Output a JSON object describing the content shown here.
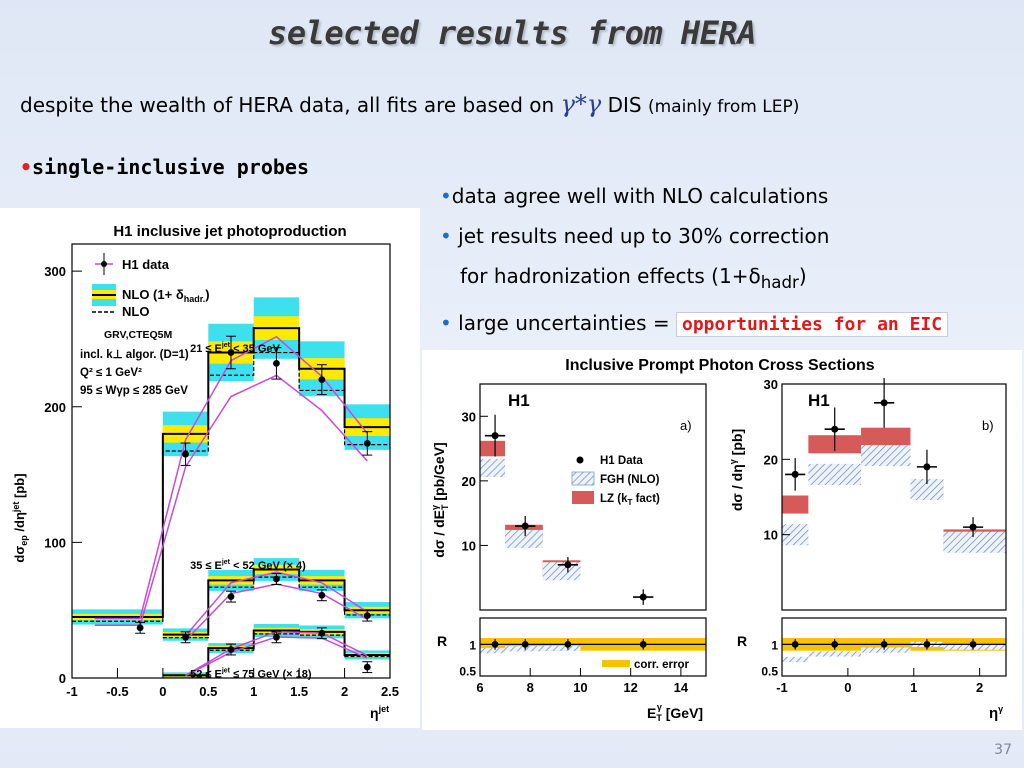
{
  "slide": {
    "title": "selected results from HERA",
    "subtitle_pre": "despite the wealth of HERA data, all fits are based on",
    "gamma_symbol": "γ*γ",
    "subtitle_dis": "DIS",
    "subtitle_paren": "(mainly from LEP)",
    "bullet": "•",
    "probes": "single-inclusive probes",
    "notes": {
      "n1": "data agree well with NLO calculations",
      "n2a": "jet results need up to 30% correction",
      "n2b_pre": "for hadronization effects (1+δ",
      "n2b_sub": "hadr",
      "n2b_post": ")",
      "n3": "large uncertainties =",
      "eic": "opportunities for an EIC"
    },
    "page_number": "37"
  },
  "chart_data": [
    {
      "type": "step",
      "title": "H1 inclusive jet photoproduction",
      "xlabel": "η^jet",
      "ylabel": "dσ_ep/dη^jet [pb]",
      "xlim": [
        -1,
        2.5
      ],
      "ylim": [
        0,
        320
      ],
      "xticks": [
        "-1",
        "-0.5",
        "0",
        "0.5",
        "1",
        "1.5",
        "2",
        "2.5"
      ],
      "yticks": [
        "0",
        "100",
        "200",
        "300"
      ],
      "legend": {
        "h1": "H1 data",
        "nlo_band": "NLO (1+ δ",
        "nlo_band_sub": "hadr.",
        "nlo": "NLO",
        "pdf": "GRV,CTEQ5M",
        "algo": "incl. k⊥ algor. (D=1)",
        "q2": "Q² ≤ 1 GeV²",
        "wgp": "95 ≤ Wγp ≤ 285 GeV"
      },
      "colors": {
        "nlo_band": "#3fe0ee",
        "scale_band": "#ffea00",
        "nlo_line": "#000000",
        "hadr_lines": "#c84ad8"
      },
      "series": [
        {
          "name": "21 ≤ E_T^jet < 35 GeV",
          "label_text": "21 ≤ E",
          "label_sup": "jet",
          "label_post": "< 35 GeV",
          "bins": [
            -1,
            -0.5,
            0,
            0.5,
            1,
            1.5,
            2,
            2.5
          ],
          "nlo": [
            45,
            45,
            180,
            240,
            258,
            228,
            185
          ],
          "data_x": [
            -0.25,
            0.25,
            0.75,
            1.25,
            1.75,
            2.25
          ],
          "data_y": [
            37,
            165,
            240,
            232,
            220,
            173
          ]
        },
        {
          "name": "35 ≤ E_T^jet < 52 GeV (×4)",
          "label_text": "35 ≤ E",
          "label_sup": "jet",
          "label_post": "< 52 GeV (× 4)",
          "bins": [
            0,
            0.5,
            1,
            1.5,
            2,
            2.5
          ],
          "nlo": [
            32,
            72,
            80,
            72,
            50
          ],
          "data_x": [
            0.25,
            0.75,
            1.25,
            1.75,
            2.25
          ],
          "data_y": [
            30,
            60,
            73,
            61,
            46
          ]
        },
        {
          "name": "52 ≤ E_T^jet ≤ 75 GeV (×18)",
          "label_text": "52 ≤ E",
          "label_sup": "jet",
          "label_post": "≤ 75 GeV (× 18)",
          "bins": [
            0,
            0.5,
            1,
            1.5,
            2,
            2.5
          ],
          "nlo": [
            2,
            22,
            35,
            34,
            17
          ],
          "data_x": [
            0.75,
            1.25,
            1.75,
            2.25
          ],
          "data_y": [
            21,
            30,
            33,
            8
          ]
        }
      ]
    },
    {
      "type": "step",
      "title": "Inclusive Prompt Photon Cross Sections",
      "panel": "a)",
      "label": "H1",
      "xlabel": "E_T^γ [GeV]",
      "ylabel": "dσ / dE_T^γ [pb/GeV]",
      "xlim": [
        6,
        15
      ],
      "ylim": [
        0,
        35
      ],
      "xticks": [
        "6",
        "8",
        "10",
        "12",
        "14"
      ],
      "yticks": [
        "10",
        "20",
        "30"
      ],
      "legend": {
        "h1": "H1 Data",
        "fgh": "FGH (NLO)",
        "lz": "LZ (k",
        "lz_sub": "T",
        "lz_post": " fact)"
      },
      "data_x": [
        6.6,
        7.8,
        9.5,
        12.5
      ],
      "data_y": [
        27,
        13,
        7,
        2
      ],
      "ratio_label": "R",
      "ratio_ticks": [
        "0.5",
        "1"
      ],
      "ratio_legend": "corr. error"
    },
    {
      "type": "step",
      "panel": "b)",
      "label": "H1",
      "xlabel": "η^γ",
      "ylabel": "dσ / dη^γ [pb]",
      "xlim": [
        -1,
        2.4
      ],
      "ylim": [
        0,
        30
      ],
      "xticks": [
        "-1",
        "0",
        "1",
        "2"
      ],
      "yticks": [
        "10",
        "20",
        "30"
      ],
      "data_x": [
        -0.8,
        -0.2,
        0.55,
        1.2,
        1.9
      ],
      "data_y": [
        18,
        24,
        27.5,
        19,
        11
      ],
      "ratio_label": "R",
      "ratio_ticks": [
        "0.5",
        "1"
      ]
    }
  ]
}
